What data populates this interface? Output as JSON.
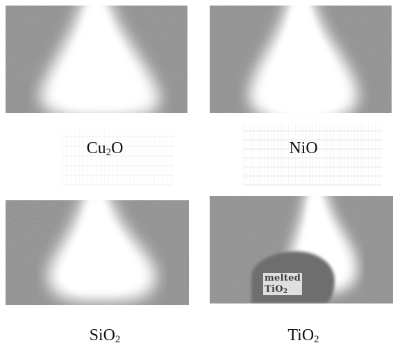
{
  "panels": [
    {
      "id": "cu2o",
      "label_base": "Cu",
      "label_sub": "2",
      "label_tail": "O"
    },
    {
      "id": "nio",
      "label_base": "NiO",
      "label_sub": "",
      "label_tail": ""
    },
    {
      "id": "sio2",
      "label_base": "SiO",
      "label_sub": "2",
      "label_tail": ""
    },
    {
      "id": "tio2",
      "label_base": "TiO",
      "label_sub": "2",
      "label_tail": ""
    }
  ],
  "annotation": {
    "line1": "melted",
    "line2_base": "TiO",
    "line2_sub": "2"
  },
  "colors": {
    "background": "#ffffff",
    "panel_gray": "#8a8a8a",
    "glow": "#ffffff",
    "melted_region": "#6a6a6a"
  }
}
